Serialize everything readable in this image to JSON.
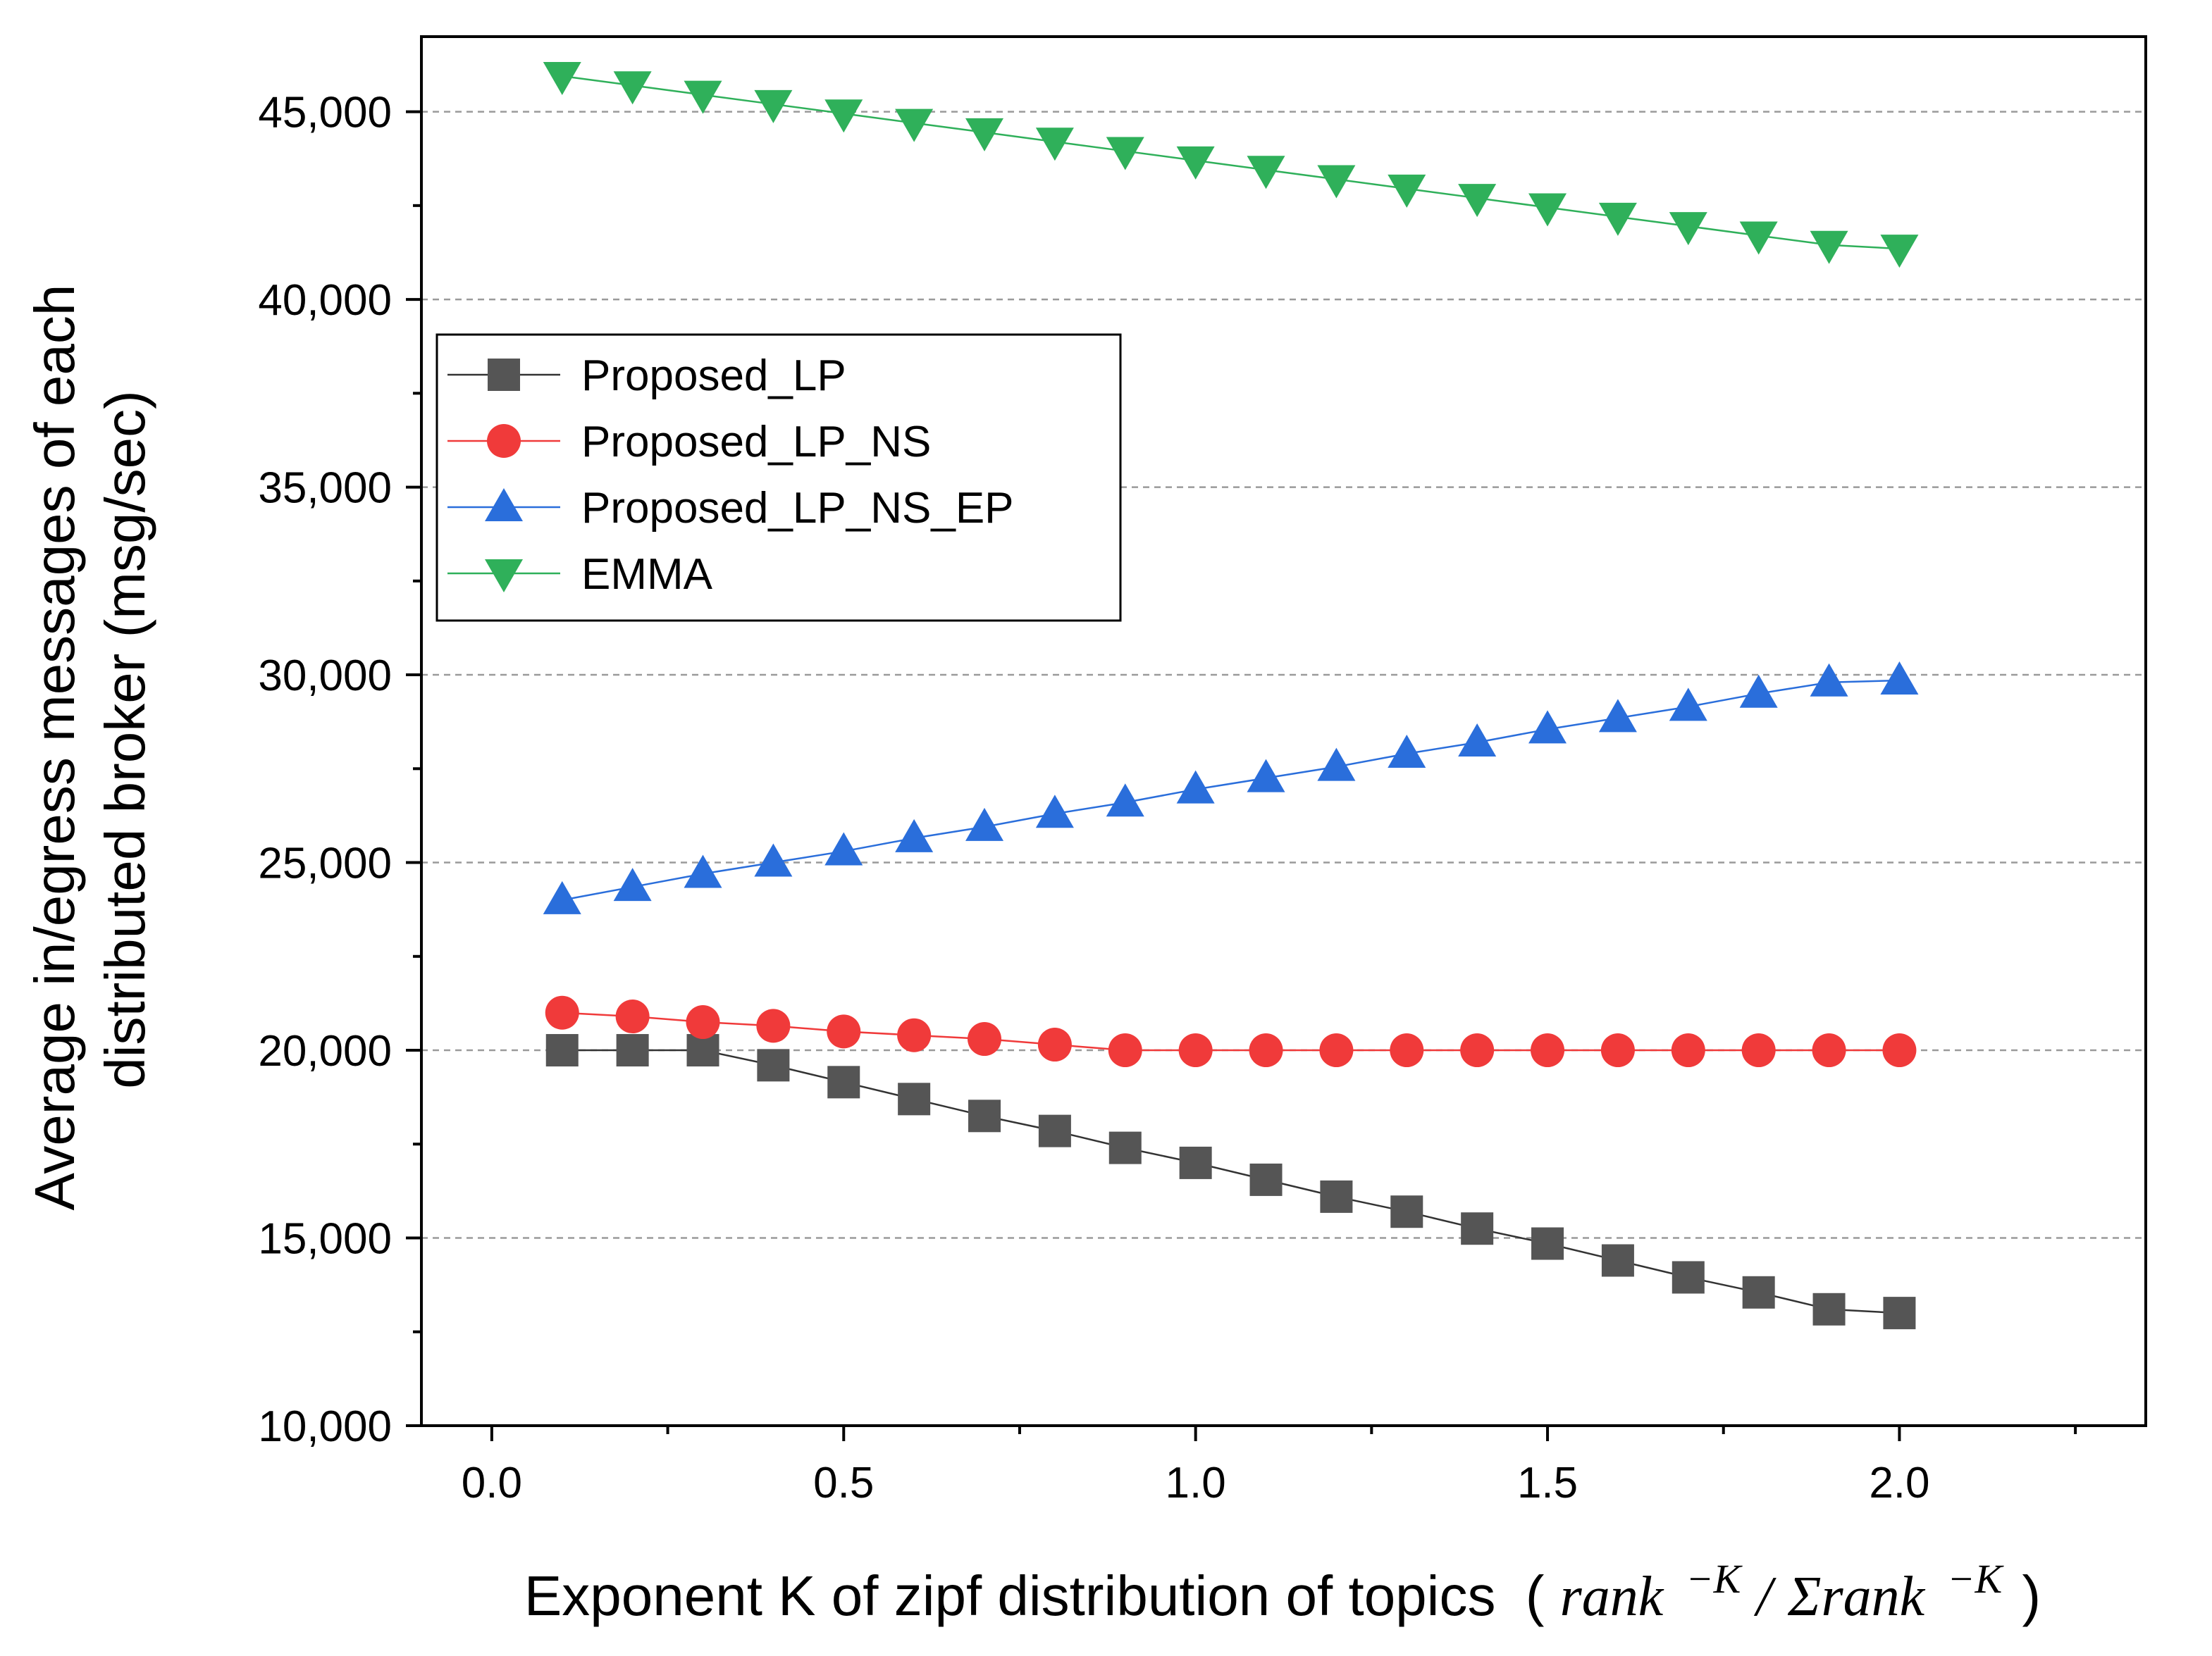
{
  "chart_data": {
    "type": "line",
    "title": "",
    "xlabel": "Exponent K of zipf distribution of topics",
    "xlabel_formula": {
      "open": "(",
      "term": "rank",
      "exp": "−K",
      "sep": "/",
      "sum_term": "Σrank",
      "close": ")"
    },
    "ylabel_lines": [
      "Average in/egress messages of each",
      "distributed broker (msg/sec)"
    ],
    "xlim": [
      -0.1,
      2.35
    ],
    "ylim": [
      10000,
      47000
    ],
    "xticks": [
      0.0,
      0.5,
      1.0,
      1.5,
      2.0
    ],
    "xtick_labels": [
      "0.0",
      "0.5",
      "1.0",
      "1.5",
      "2.0"
    ],
    "yticks": [
      10000,
      15000,
      20000,
      25000,
      30000,
      35000,
      40000,
      45000
    ],
    "ytick_labels": [
      "10,000",
      "15,000",
      "20,000",
      "25,000",
      "30,000",
      "35,000",
      "40,000",
      "45,000"
    ],
    "grid": "horizontal dashed",
    "legend_position": "upper-left",
    "x": [
      0.1,
      0.2,
      0.3,
      0.4,
      0.5,
      0.6,
      0.7,
      0.8,
      0.9,
      1.0,
      1.1,
      1.2,
      1.3,
      1.4,
      1.5,
      1.6,
      1.7,
      1.8,
      1.9,
      2.0
    ],
    "series": [
      {
        "name": "Proposed_LP",
        "marker": "square",
        "color": "#555555",
        "line_color": "#333333",
        "values": [
          20000,
          20000,
          20000,
          19600,
          19150,
          18700,
          18250,
          17850,
          17400,
          17000,
          16550,
          16100,
          15700,
          15250,
          14850,
          14400,
          13950,
          13550,
          13100,
          13000
        ]
      },
      {
        "name": "Proposed_LP_NS",
        "marker": "circle",
        "color": "#f03a3a",
        "line_color": "#f03a3a",
        "values": [
          21000,
          20900,
          20750,
          20650,
          20500,
          20400,
          20300,
          20150,
          20000,
          20000,
          20000,
          20000,
          20000,
          20000,
          20000,
          20000,
          20000,
          20000,
          20000,
          20000
        ]
      },
      {
        "name": "Proposed_LP_NS_EP",
        "marker": "triangle-up",
        "color": "#2a6edb",
        "line_color": "#2a6edb",
        "values": [
          24000,
          24350,
          24700,
          25000,
          25300,
          25650,
          25950,
          26300,
          26600,
          26950,
          27250,
          27550,
          27900,
          28200,
          28550,
          28850,
          29150,
          29500,
          29800,
          29850
        ]
      },
      {
        "name": "EMMA",
        "marker": "triangle-down",
        "color": "#2fb05a",
        "line_color": "#2fb05a",
        "values": [
          45950,
          45700,
          45450,
          45200,
          44950,
          44700,
          44450,
          44200,
          43950,
          43700,
          43450,
          43200,
          42950,
          42700,
          42450,
          42200,
          41950,
          41700,
          41450,
          41350
        ]
      }
    ]
  }
}
